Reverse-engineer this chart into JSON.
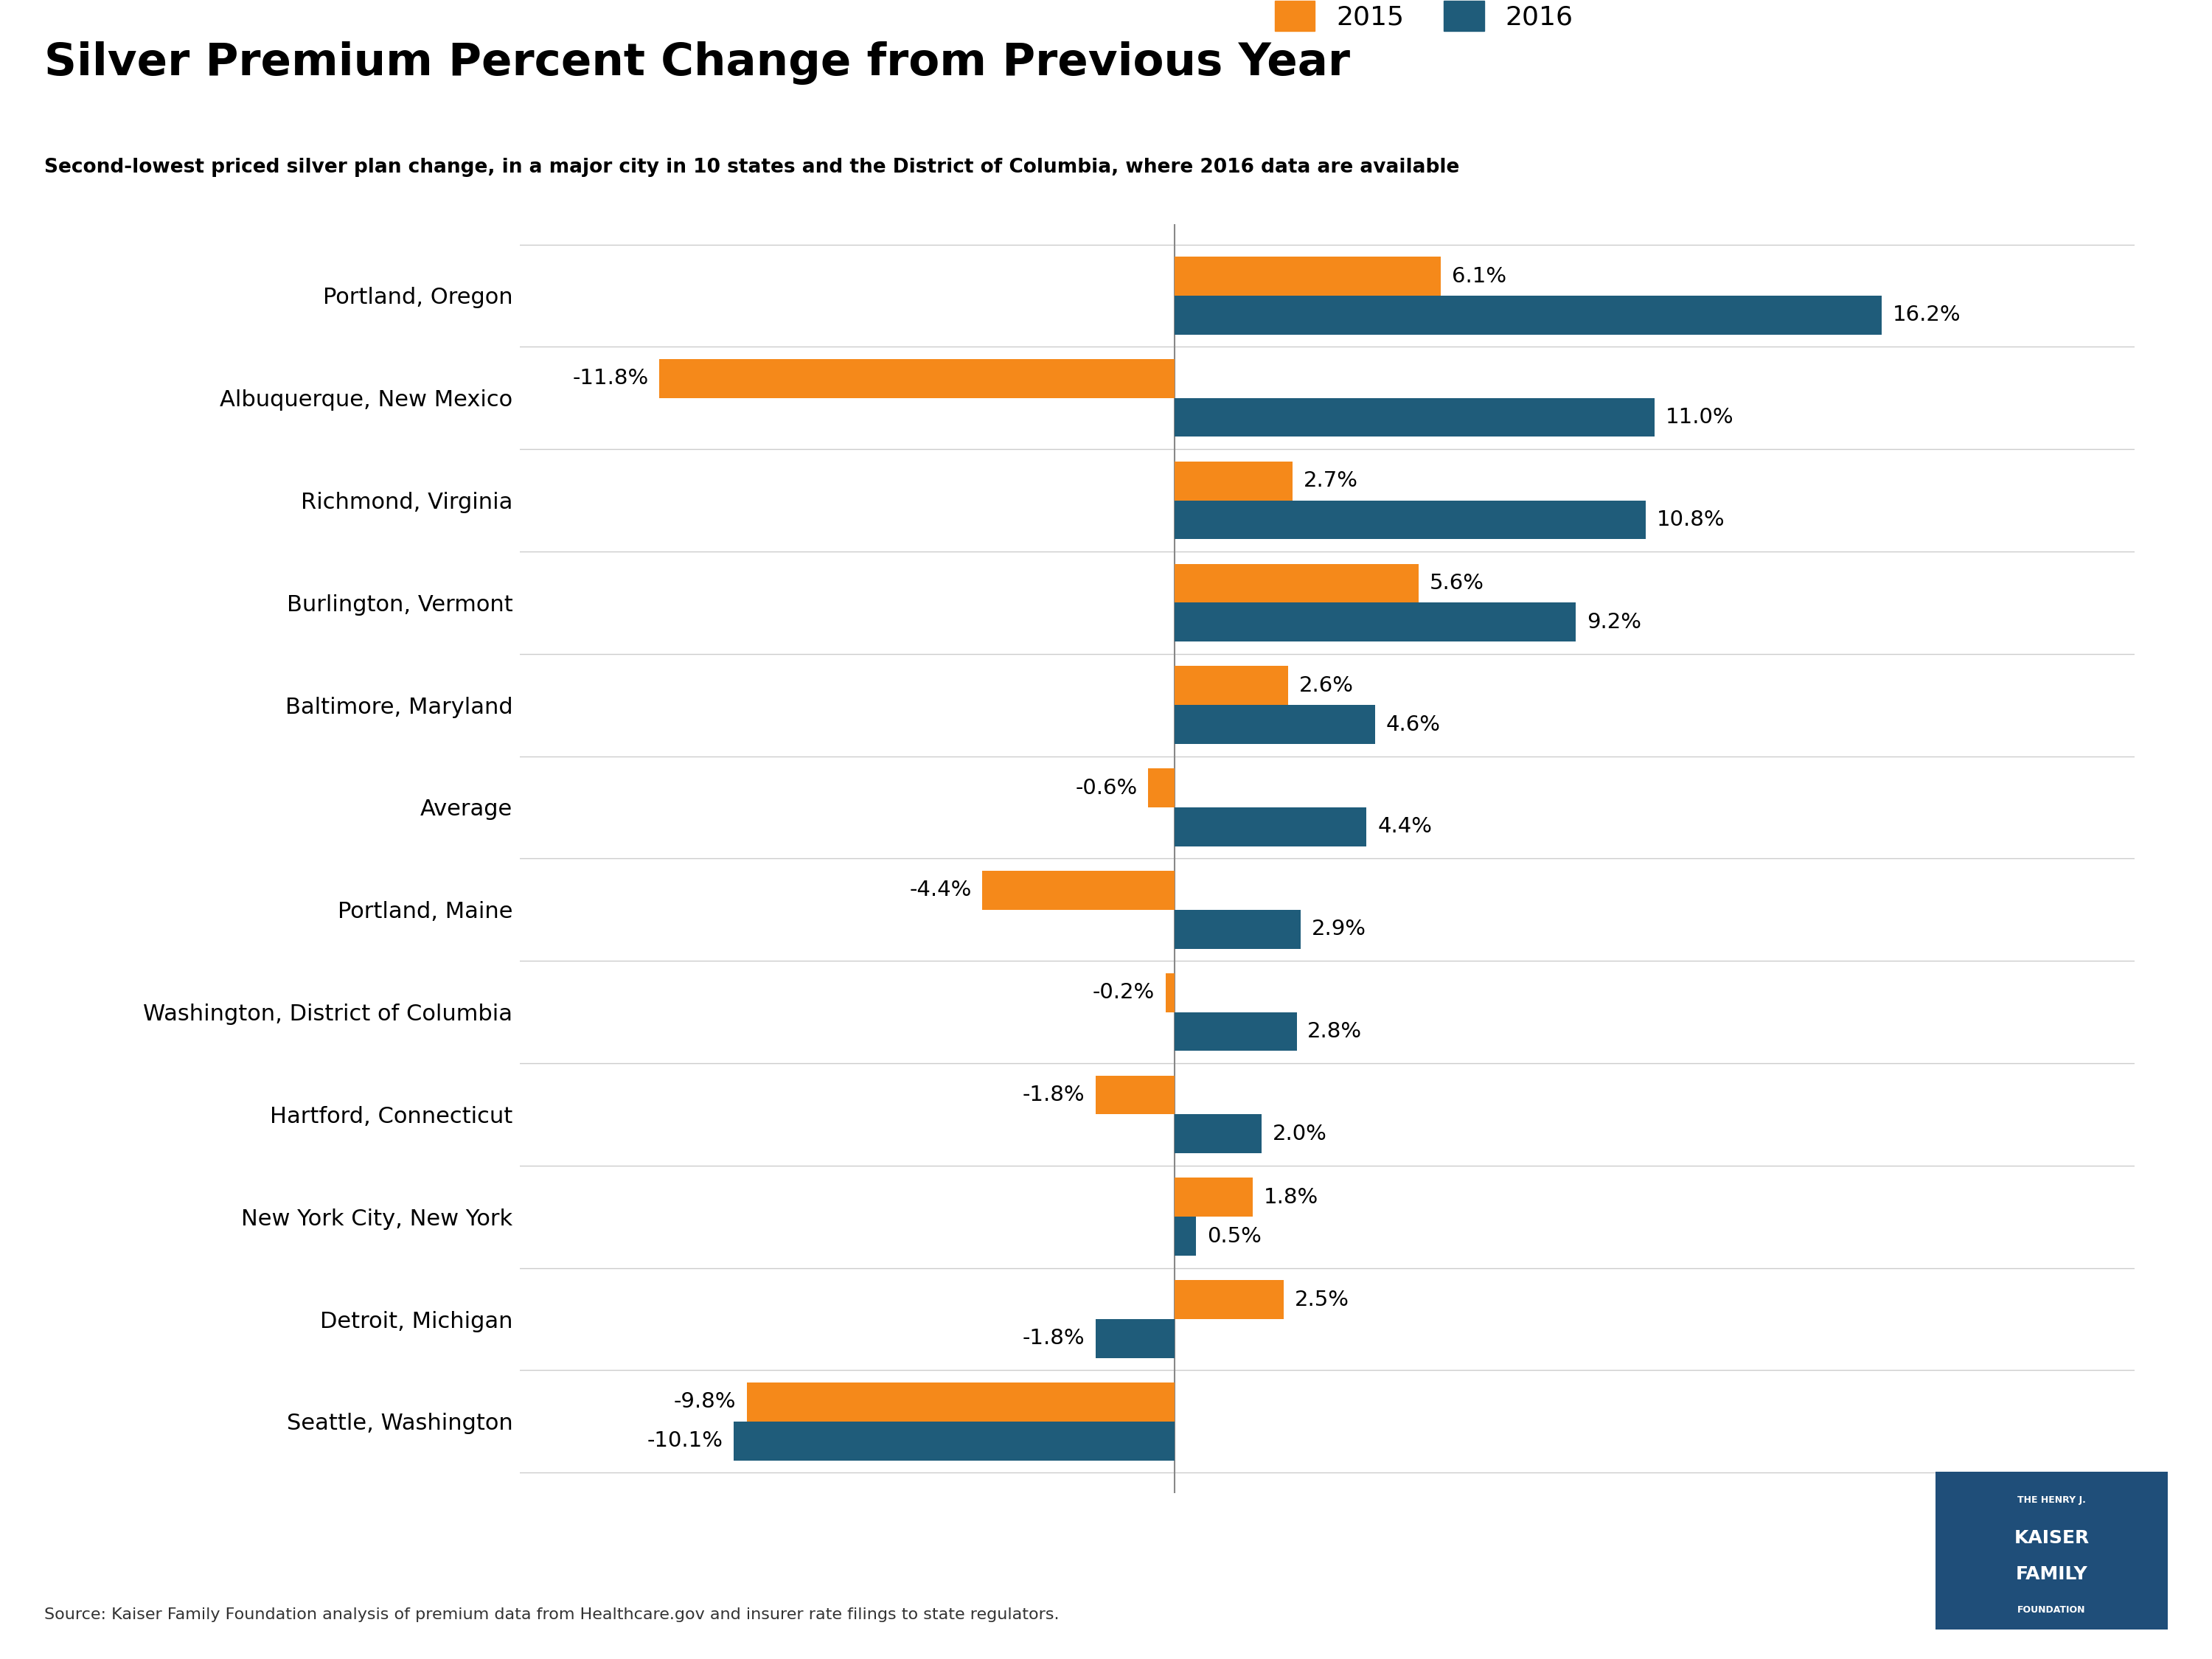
{
  "title": "Silver Premium Percent Change from Previous Year",
  "subtitle": "Second-lowest priced silver plan change, in a major city in 10 states and the District of Columbia, where 2016 data are available",
  "categories": [
    "Portland, Oregon",
    "Albuquerque, New Mexico",
    "Richmond, Virginia",
    "Burlington, Vermont",
    "Baltimore, Maryland",
    "Average",
    "Portland, Maine",
    "Washington, District of Columbia",
    "Hartford, Connecticut",
    "New York City, New York",
    "Detroit, Michigan",
    "Seattle, Washington"
  ],
  "values_2015": [
    6.1,
    -11.8,
    2.7,
    5.6,
    2.6,
    -0.6,
    -4.4,
    -0.2,
    -1.8,
    1.8,
    2.5,
    -9.8
  ],
  "values_2016": [
    16.2,
    11.0,
    10.8,
    9.2,
    4.6,
    4.4,
    2.9,
    2.8,
    2.0,
    0.5,
    -1.8,
    -10.1
  ],
  "color_2015": "#F5891A",
  "color_2016": "#1F5C7A",
  "bar_height": 0.38,
  "xlim": [
    -15,
    22
  ],
  "title_fontsize": 44,
  "subtitle_fontsize": 19,
  "label_fontsize": 21,
  "ytick_fontsize": 22,
  "legend_fontsize": 26,
  "source_text": "Source: Kaiser Family Foundation analysis of premium data from Healthcare.gov and insurer rate filings to state regulators.",
  "background_color": "#FFFFFF",
  "grid_color": "#CCCCCC",
  "text_color": "#000000",
  "zero_line_color": "#888888"
}
